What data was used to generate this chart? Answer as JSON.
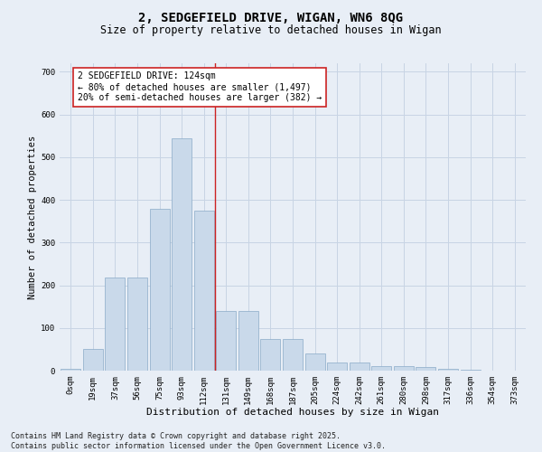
{
  "title1": "2, SEDGEFIELD DRIVE, WIGAN, WN6 8QG",
  "title2": "Size of property relative to detached houses in Wigan",
  "xlabel": "Distribution of detached houses by size in Wigan",
  "ylabel": "Number of detached properties",
  "categories": [
    "0sqm",
    "19sqm",
    "37sqm",
    "56sqm",
    "75sqm",
    "93sqm",
    "112sqm",
    "131sqm",
    "149sqm",
    "168sqm",
    "187sqm",
    "205sqm",
    "224sqm",
    "242sqm",
    "261sqm",
    "280sqm",
    "298sqm",
    "317sqm",
    "336sqm",
    "354sqm",
    "373sqm"
  ],
  "values": [
    5,
    50,
    218,
    218,
    380,
    545,
    375,
    140,
    140,
    75,
    75,
    40,
    20,
    20,
    10,
    10,
    8,
    5,
    2,
    1,
    1
  ],
  "bar_color": "#c9d9ea",
  "bar_edge_color": "#8aaac8",
  "grid_color": "#c8d4e4",
  "background_color": "#e8eef6",
  "vline_color": "#cc2222",
  "annotation_text": "2 SEDGEFIELD DRIVE: 124sqm\n← 80% of detached houses are smaller (1,497)\n20% of semi-detached houses are larger (382) →",
  "annotation_box_color": "#ffffff",
  "annotation_edge_color": "#cc2222",
  "footnote": "Contains HM Land Registry data © Crown copyright and database right 2025.\nContains public sector information licensed under the Open Government Licence v3.0.",
  "ylim": [
    0,
    720
  ],
  "yticks": [
    0,
    100,
    200,
    300,
    400,
    500,
    600,
    700
  ],
  "title1_fontsize": 10,
  "title2_fontsize": 8.5,
  "xlabel_fontsize": 8,
  "ylabel_fontsize": 7.5,
  "tick_fontsize": 6.5,
  "annotation_fontsize": 7,
  "footnote_fontsize": 6
}
